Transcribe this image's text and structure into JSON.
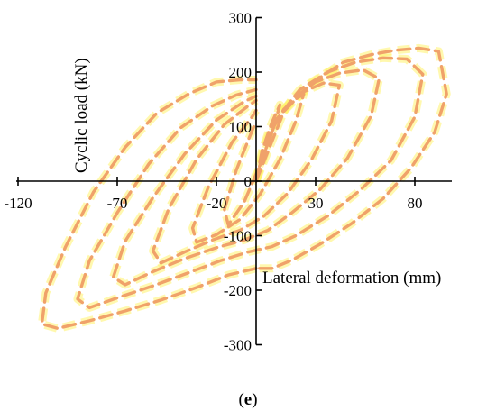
{
  "chart_data": {
    "type": "line",
    "title": "",
    "xlabel": "Lateral deformation (mm)",
    "ylabel": "Cyclic load (kN)",
    "xlim": [
      -120,
      100
    ],
    "ylim": [
      -300,
      300
    ],
    "x_ticks": [
      -120,
      -70,
      -20,
      30,
      80
    ],
    "y_ticks": [
      -300,
      -200,
      -100,
      0,
      100,
      200,
      300
    ],
    "x_tick_labels": [
      "-120",
      "-70",
      "-20",
      "30",
      "80"
    ],
    "y_tick_labels": [
      "-300",
      "-200",
      "-100",
      "0",
      "100",
      "200",
      "300"
    ],
    "panel_label": "(e)",
    "grid": false,
    "line_style": "dashed",
    "series": [
      {
        "color": "#f0a26a",
        "glow_color": "#fff36b",
        "x": [
          0,
          14,
          28,
          44,
          58,
          70,
          82,
          92,
          96,
          90,
          78,
          64,
          48,
          32,
          18,
          8,
          0
        ],
        "y": [
          0,
          128,
          180,
          218,
          232,
          240,
          244,
          238,
          160,
          90,
          24,
          -32,
          -78,
          -116,
          -145,
          -160,
          -160
        ]
      },
      {
        "color": "#f0a26a",
        "glow_color": "#fff36b",
        "x": [
          0,
          -14,
          -30,
          -48,
          -66,
          -84,
          -100,
          -108,
          -106,
          -96,
          -82,
          -66,
          -50,
          -34,
          -20,
          -8,
          0
        ],
        "y": [
          -160,
          -172,
          -195,
          -218,
          -238,
          -256,
          -270,
          -262,
          -205,
          -120,
          -20,
          62,
          125,
          160,
          182,
          186,
          186
        ]
      },
      {
        "color": "#f0a26a",
        "glow_color": "#fff36b",
        "x": [
          0,
          10,
          22,
          36,
          50,
          64,
          76,
          84,
          80,
          68,
          52,
          36,
          20,
          8,
          -4,
          -18,
          -34,
          -52,
          -70,
          -84,
          -90,
          -84,
          -70,
          -54,
          -38,
          -22,
          -10,
          0
        ],
        "y": [
          0,
          112,
          168,
          200,
          218,
          226,
          224,
          196,
          118,
          38,
          -18,
          -64,
          -100,
          -120,
          -130,
          -146,
          -168,
          -192,
          -214,
          -232,
          -216,
          -146,
          -58,
          32,
          98,
          138,
          158,
          168
        ]
      },
      {
        "color": "#f0a26a",
        "glow_color": "#fff36b",
        "x": [
          0,
          8,
          18,
          30,
          42,
          54,
          62,
          58,
          46,
          32,
          18,
          6,
          -6,
          -20,
          -36,
          -52,
          -66,
          -72,
          -66,
          -52,
          -36,
          -20,
          -6,
          0
        ],
        "y": [
          0,
          96,
          150,
          182,
          198,
          204,
          188,
          120,
          42,
          -16,
          -58,
          -90,
          -108,
          -122,
          -142,
          -166,
          -190,
          -176,
          -110,
          -30,
          50,
          112,
          146,
          156
        ]
      },
      {
        "color": "#f0a26a",
        "glow_color": "#fff36b",
        "x": [
          0,
          6,
          14,
          24,
          34,
          42,
          38,
          28,
          16,
          4,
          -8,
          -22,
          -36,
          -48,
          -52,
          -44,
          -30,
          -16,
          -4,
          0
        ],
        "y": [
          0,
          82,
          132,
          164,
          180,
          176,
          110,
          40,
          -22,
          -64,
          -90,
          -108,
          -130,
          -150,
          -128,
          -50,
          40,
          104,
          138,
          148
        ]
      },
      {
        "color": "#f0a26a",
        "glow_color": "#fff36b",
        "x": [
          0,
          4,
          10,
          18,
          24,
          20,
          12,
          2,
          -8,
          -20,
          -30,
          -32,
          -24,
          -12,
          -2,
          0
        ],
        "y": [
          0,
          64,
          112,
          146,
          160,
          110,
          40,
          -24,
          -70,
          -98,
          -112,
          -86,
          -10,
          72,
          118,
          130
        ]
      },
      {
        "color": "#f0a26a",
        "glow_color": "#fff36b",
        "x": [
          0,
          3,
          8,
          12,
          9,
          2,
          -6,
          -14,
          -16,
          -10,
          -3,
          0
        ],
        "y": [
          0,
          56,
          108,
          140,
          100,
          30,
          -38,
          -80,
          -52,
          20,
          84,
          110
        ]
      }
    ]
  }
}
